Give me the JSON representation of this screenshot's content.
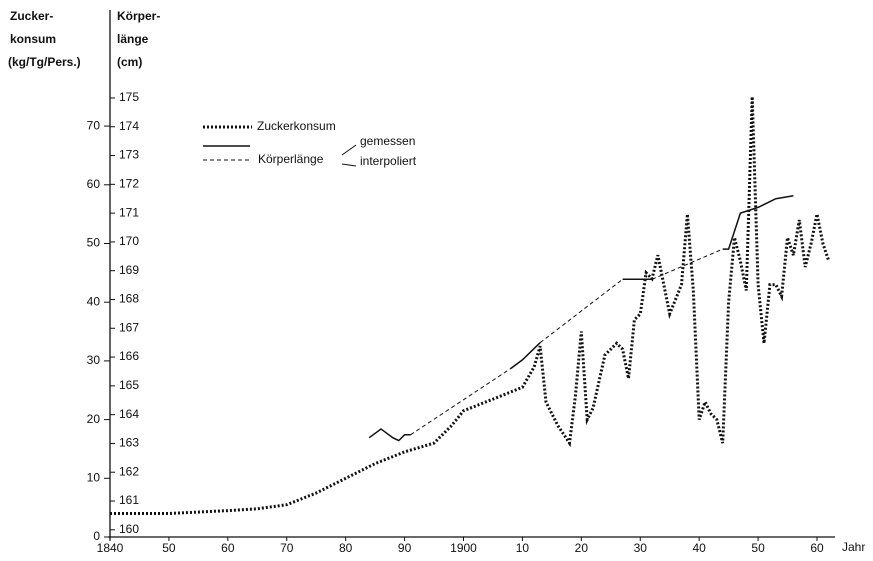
{
  "chart_data": {
    "type": "line",
    "ylabel": [
      "Zucker-",
      "konsum",
      "(kg/Tg/Pers.)"
    ],
    "y2label": [
      "Körper-",
      "länge",
      "(cm)"
    ],
    "xlabel": "Jahr",
    "legend_group": "Körperlänge",
    "xlim": [
      1840,
      1960
    ],
    "xticks": [
      1840,
      {
        "value": 1850,
        "label": "50"
      },
      {
        "value": 1860,
        "label": "60"
      },
      {
        "value": 1870,
        "label": "70"
      },
      {
        "value": 1880,
        "label": "80"
      },
      {
        "value": 1890,
        "label": "90"
      },
      1900,
      {
        "value": 1910,
        "label": "10"
      },
      {
        "value": 1920,
        "label": "20"
      },
      {
        "value": 1930,
        "label": "30"
      },
      {
        "value": 1940,
        "label": "40"
      },
      {
        "value": 1950,
        "label": "50"
      },
      {
        "value": 1960,
        "label": "60"
      }
    ],
    "ylim": [
      0,
      77
    ],
    "yticks": [
      0,
      10,
      20,
      30,
      40,
      50,
      60,
      70
    ],
    "y2lim": [
      159.75,
      175.45
    ],
    "y2ticks": [
      160,
      161,
      162,
      163,
      164,
      165,
      166,
      167,
      168,
      169,
      170,
      171,
      172,
      173,
      174,
      175
    ],
    "series": [
      {
        "name": "Zuckerkonsum",
        "color": "#111",
        "style": "dotted",
        "x": [
          1840,
          1850,
          1860,
          1865,
          1870,
          1875,
          1880,
          1885,
          1890,
          1895,
          1898,
          1900,
          1905,
          1910,
          1912,
          1913,
          1914,
          1916,
          1918,
          1919,
          1920,
          1921,
          1922,
          1924,
          1926,
          1927,
          1928,
          1929,
          1930,
          1931,
          1932,
          1933,
          1934,
          1935,
          1937,
          1938,
          1939,
          1940,
          1941,
          1942,
          1943,
          1944,
          1945,
          1946,
          1947,
          1948,
          1949,
          1950,
          1951,
          1952,
          1953,
          1954,
          1955,
          1956,
          1957,
          1958,
          1959,
          1960,
          1961,
          1962
        ],
        "values": [
          4,
          4,
          4.5,
          4.8,
          5.5,
          7.5,
          10,
          12.5,
          14.5,
          16,
          19,
          21.5,
          23.5,
          25.5,
          29,
          32.5,
          23,
          19,
          16,
          24,
          35,
          20,
          22,
          31,
          33,
          32,
          27,
          37,
          38,
          45,
          44,
          48,
          43,
          38,
          43,
          55,
          42,
          20,
          23,
          21,
          20,
          16,
          40,
          51,
          47,
          42,
          75,
          43,
          33,
          43,
          43,
          41,
          51,
          48,
          54,
          46,
          50,
          55,
          50,
          47
        ]
      },
      {
        "name": "gemessen",
        "color": "#111",
        "style": "solid",
        "axis": "y2",
        "x": [
          1884,
          1886,
          1888,
          1889,
          1890,
          1891,
          null,
          1908,
          1910,
          1913,
          null,
          1927,
          1932,
          null,
          1944,
          1945,
          1947,
          1950,
          1953,
          1956
        ],
        "values": [
          163.2,
          163.5,
          163.2,
          163.1,
          163.3,
          163.3,
          null,
          165.6,
          165.9,
          166.5,
          null,
          168.7,
          168.7,
          null,
          169.75,
          169.75,
          171,
          171.2,
          171.5,
          171.6
        ]
      },
      {
        "name": "interpoliert",
        "color": "#111",
        "style": "dashed",
        "axis": "y2",
        "x": [
          1891,
          1908,
          null,
          1913,
          1927,
          null,
          1932,
          1944
        ],
        "values": [
          163.3,
          165.6,
          null,
          166.5,
          168.7,
          null,
          168.7,
          169.75
        ]
      }
    ]
  }
}
